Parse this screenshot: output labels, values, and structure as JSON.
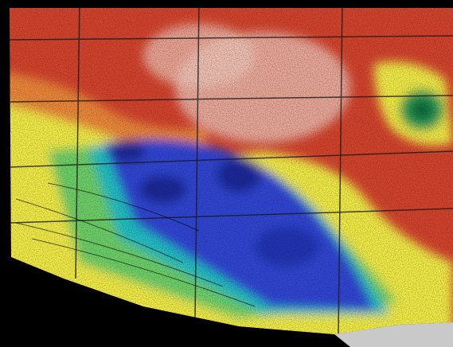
{
  "image": {
    "kind": "false-color elevation map",
    "colors": {
      "background": "#000000",
      "high": "#d8452e",
      "peak": "#f3c4b6",
      "mid_high": "#f08a3a",
      "mid": "#f6f04a",
      "mid_low": "#6fd46a",
      "low": "#22c4c8",
      "deep": "#3246d8",
      "deepest": "#1a2a9c",
      "grid": "#1a1a1a",
      "corner_gray": "#c9c9c9"
    }
  }
}
